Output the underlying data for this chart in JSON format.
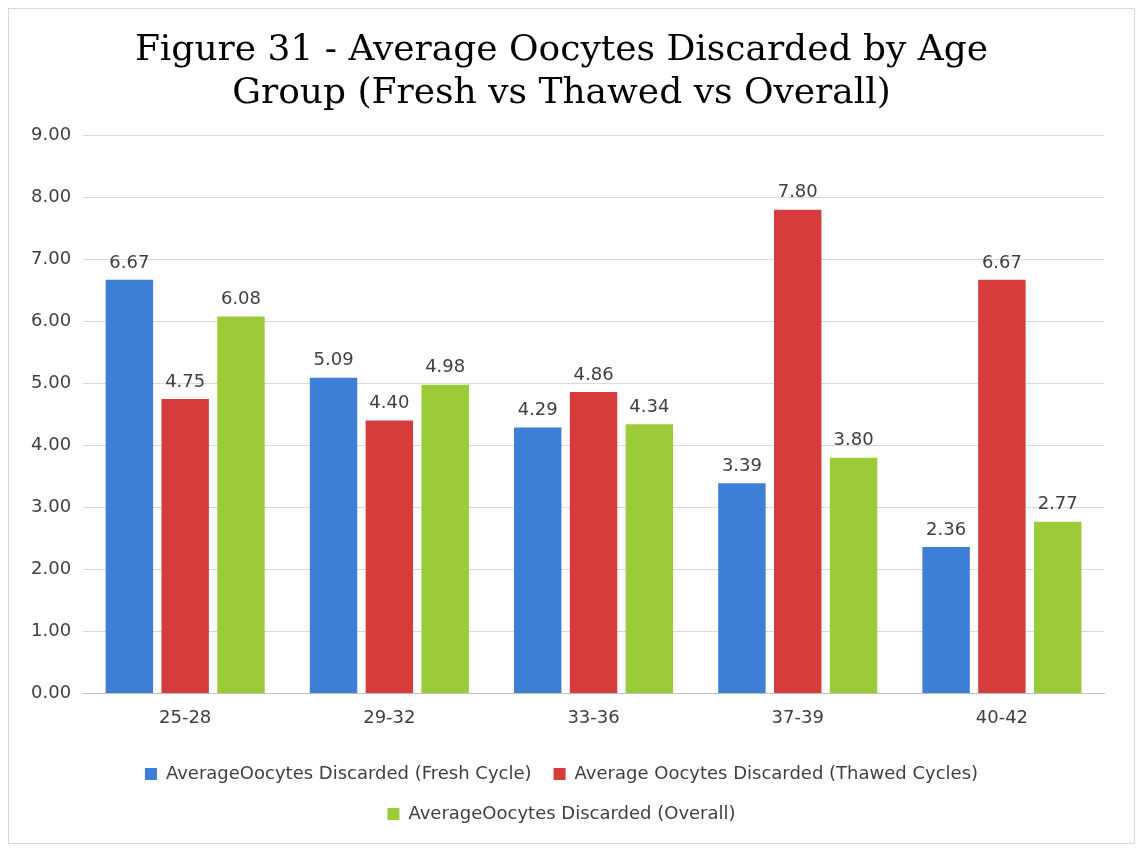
{
  "chart_data": {
    "type": "bar",
    "title": [
      "Figure 31 - Average Oocytes Discarded by Age",
      "Group (Fresh vs Thawed vs Overall)"
    ],
    "categories": [
      "25-28",
      "29-32",
      "33-36",
      "37-39",
      "40-42"
    ],
    "series": [
      {
        "name": "AverageOocytes Discarded (Fresh Cycle)",
        "color": "#3d7fd6",
        "values": [
          6.67,
          5.09,
          4.29,
          3.39,
          2.36
        ],
        "value_labels": [
          "6.67",
          "5.09",
          "4.29",
          "3.39",
          "2.36"
        ]
      },
      {
        "name": "Average Oocytes Discarded (Thawed Cycles)",
        "color": "#d63c3c",
        "values": [
          4.75,
          4.4,
          4.86,
          7.8,
          6.67
        ],
        "value_labels": [
          "4.75",
          "4.40",
          "4.86",
          "7.80",
          "6.67"
        ]
      },
      {
        "name": "AverageOocytes Discarded (Overall)",
        "color": "#9ccb38",
        "values": [
          6.08,
          4.98,
          4.34,
          3.8,
          2.77
        ],
        "value_labels": [
          "6.08",
          "4.98",
          "4.34",
          "3.80",
          "2.77"
        ]
      }
    ],
    "ylim": [
      0,
      9
    ],
    "yticks": [
      {
        "value": 0,
        "label": "0.00"
      },
      {
        "value": 1,
        "label": "1.00"
      },
      {
        "value": 2,
        "label": "2.00"
      },
      {
        "value": 3,
        "label": "3.00"
      },
      {
        "value": 4,
        "label": "4.00"
      },
      {
        "value": 5,
        "label": "5.00"
      },
      {
        "value": 6,
        "label": "6.00"
      },
      {
        "value": 7,
        "label": "7.00"
      },
      {
        "value": 8,
        "label": "8.00"
      },
      {
        "value": 9,
        "label": "9.00"
      }
    ],
    "grid": "y",
    "legend": "bottom"
  }
}
